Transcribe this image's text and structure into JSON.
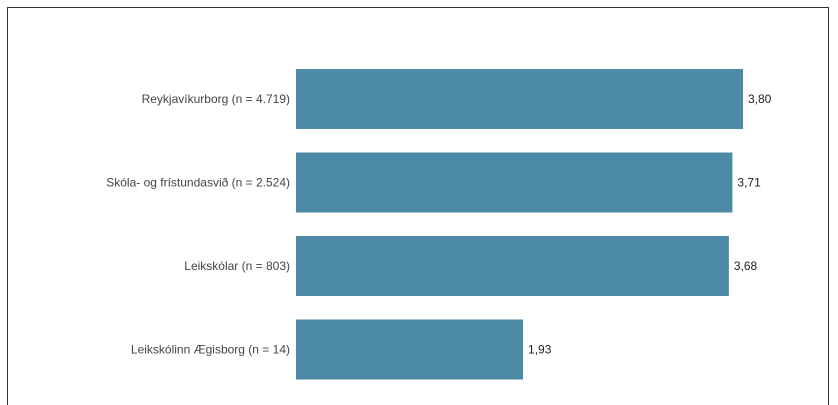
{
  "chart_data": {
    "type": "bar",
    "orientation": "horizontal",
    "categories": [
      "Reykjavíkurborg (n = 4.719)",
      "Skóla- og frístundasvið (n = 2.524)",
      "Leikskólar (n = 803)",
      "Leikskólinn Ægisborg (n = 14)"
    ],
    "values": [
      3.8,
      3.71,
      3.68,
      1.93
    ],
    "value_labels": [
      "3,80",
      "3,71",
      "3,68",
      "1,93"
    ],
    "xlim": [
      0,
      3.8
    ],
    "grid": false,
    "legend": "none",
    "bar_color": "#4d8aa6"
  }
}
